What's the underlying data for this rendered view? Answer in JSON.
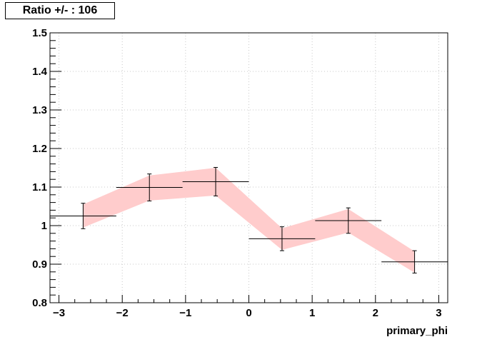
{
  "chart_data": {
    "type": "scatter",
    "title": "Ratio +/- : 106",
    "xlabel": "primary_phi",
    "ylabel": "",
    "xlim": [
      -3.14159,
      3.14159
    ],
    "ylim": [
      0.8,
      1.5
    ],
    "grid": true,
    "xticks": [
      -3,
      -2,
      -1,
      0,
      1,
      2,
      3
    ],
    "xtick_labels": [
      "−3",
      "−2",
      "−1",
      "0",
      "1",
      "2",
      "3"
    ],
    "yticks": [
      0.8,
      0.9,
      1.0,
      1.1,
      1.2,
      1.3,
      1.4,
      1.5
    ],
    "ytick_labels": [
      "0.8",
      "0.9",
      "1",
      "1.1",
      "1.2",
      "1.3",
      "1.4",
      "1.5"
    ],
    "points": [
      {
        "x": -2.618,
        "y": 1.025,
        "xerr": 0.5236,
        "yerr": 0.033,
        "band": [
          0.995,
          1.055
        ]
      },
      {
        "x": -1.571,
        "y": 1.099,
        "xerr": 0.5236,
        "yerr": 0.035,
        "band": [
          1.065,
          1.13
        ]
      },
      {
        "x": -0.524,
        "y": 1.114,
        "xerr": 0.5236,
        "yerr": 0.037,
        "band": [
          1.078,
          1.15
        ]
      },
      {
        "x": 0.524,
        "y": 0.966,
        "xerr": 0.5236,
        "yerr": 0.031,
        "band": [
          0.937,
          0.993
        ]
      },
      {
        "x": 1.571,
        "y": 1.013,
        "xerr": 0.5236,
        "yerr": 0.033,
        "band": [
          0.982,
          1.043
        ]
      },
      {
        "x": 2.618,
        "y": 0.906,
        "xerr": 0.5236,
        "yerr": 0.029,
        "band": [
          0.878,
          0.933
        ]
      }
    ],
    "band_color": "#ffcccc",
    "marker_color": "#000000"
  }
}
